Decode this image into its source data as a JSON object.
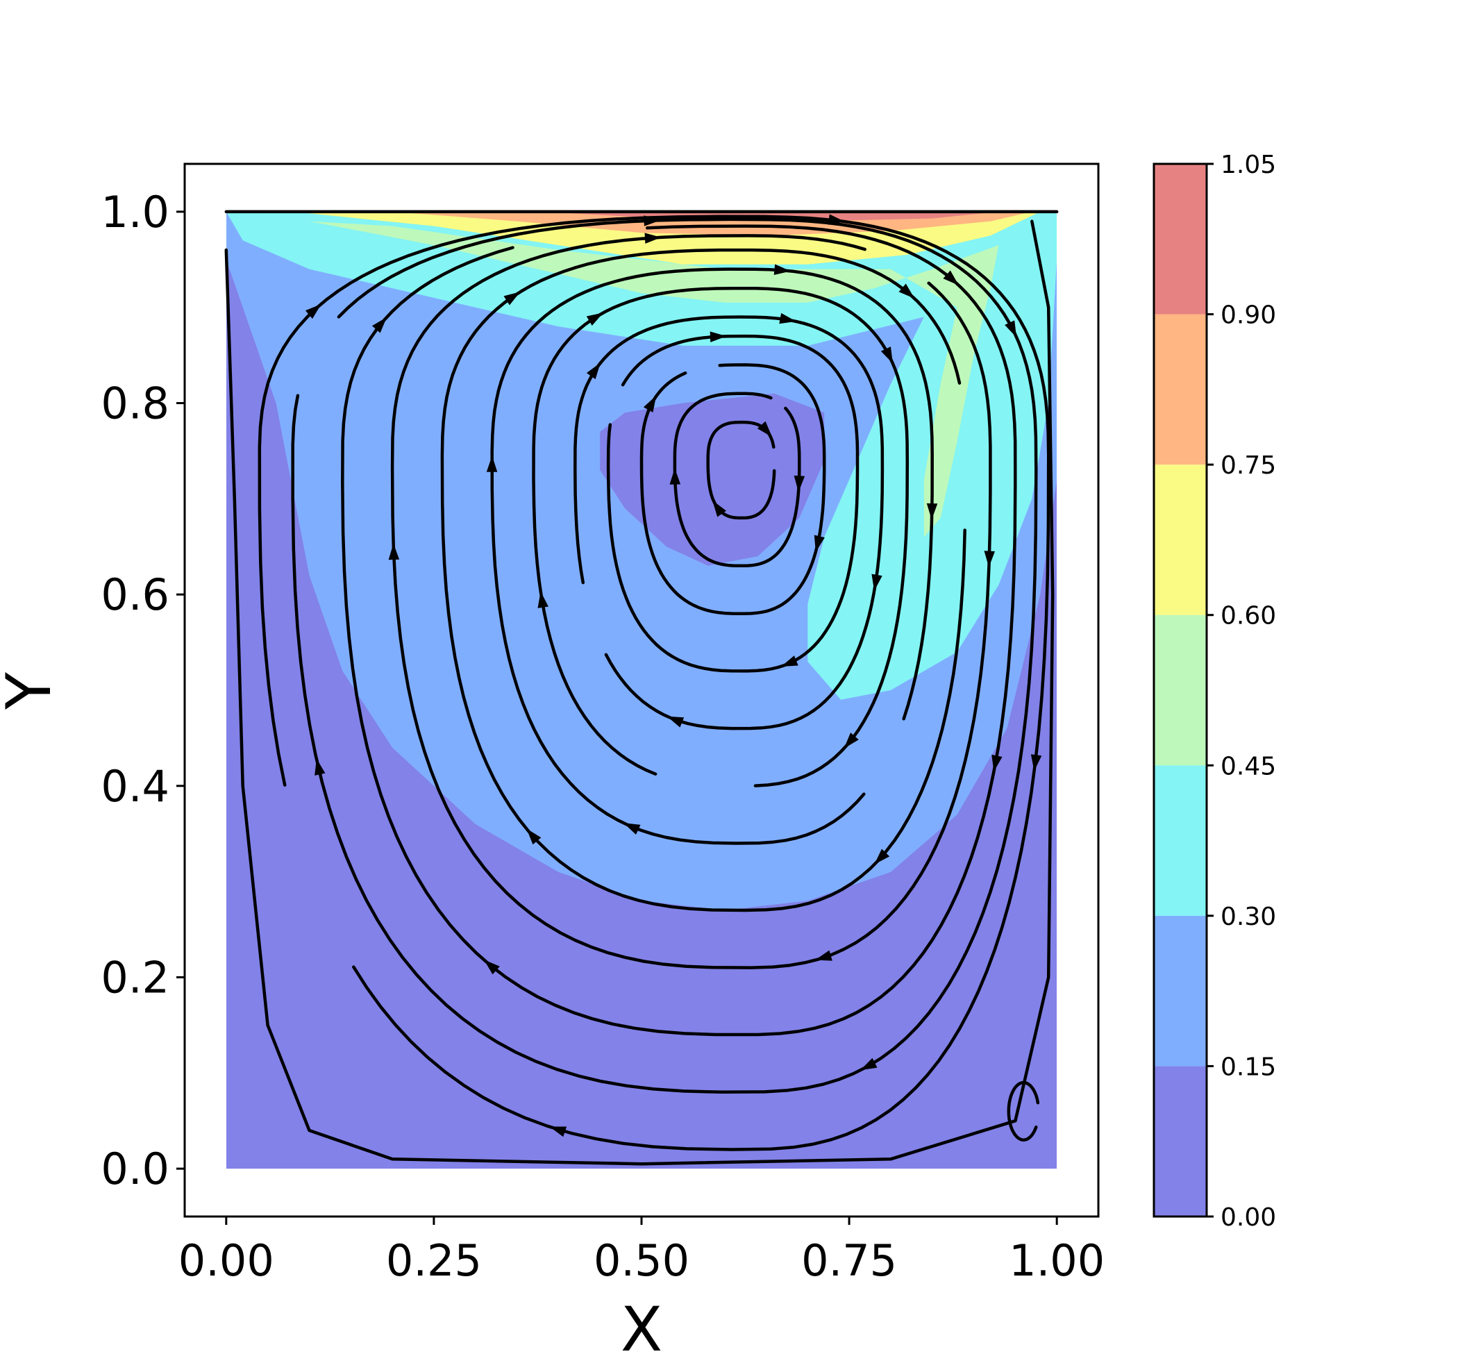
{
  "chart_data": {
    "type": "contourf+streamplot",
    "title": "",
    "xlabel": "X",
    "ylabel": "Y",
    "xlim": [
      -0.05,
      1.05
    ],
    "ylim": [
      -0.05,
      1.05
    ],
    "x_ticks": [
      "0.00",
      "0.25",
      "0.50",
      "0.75",
      "1.00"
    ],
    "y_ticks": [
      "0.0",
      "0.2",
      "0.4",
      "0.6",
      "0.8",
      "1.0"
    ],
    "colorbar": {
      "levels": [
        0.0,
        0.15,
        0.3,
        0.45,
        0.6,
        0.75,
        0.9,
        1.05
      ],
      "tick_labels": [
        "0.00",
        "0.15",
        "0.30",
        "0.45",
        "0.60",
        "0.75",
        "0.90",
        "1.05"
      ],
      "colors": [
        "#8282e8",
        "#80aeff",
        "#84f4f4",
        "#bef9bb",
        "#f9fb84",
        "#ffb682",
        "#e78282"
      ]
    },
    "vortex": {
      "primary_center": [
        0.62,
        0.74
      ],
      "secondary_corner_vortex": [
        0.96,
        0.06
      ]
    },
    "lid_velocity": 1.0,
    "grid": false
  }
}
